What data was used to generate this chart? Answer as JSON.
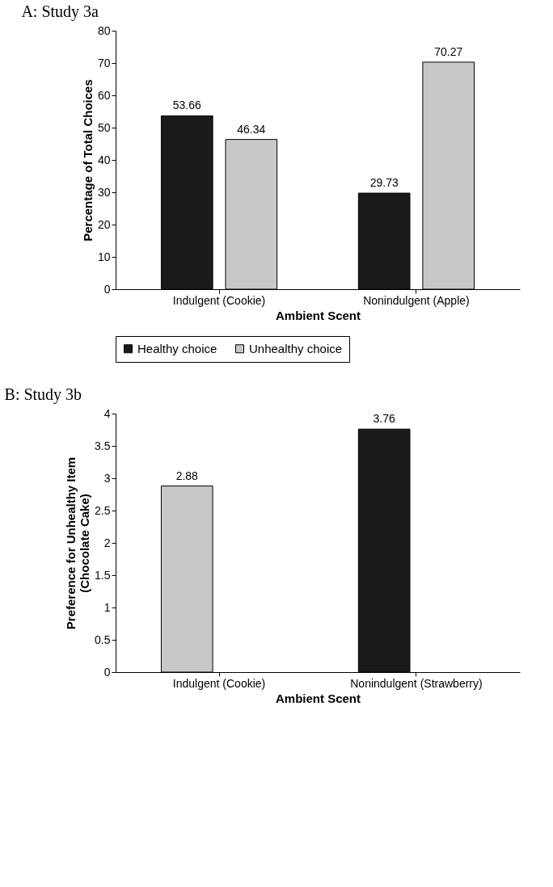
{
  "chart_data": [
    {
      "type": "bar",
      "title": "A: Study 3a",
      "xlabel": "Ambient Scent",
      "ylabel": "Percentage of Total Choices",
      "categories": [
        "Indulgent (Cookie)",
        "Nonindulgent (Apple)"
      ],
      "series": [
        {
          "name": "Healthy choice",
          "color": "#1a1a1a",
          "values": [
            53.66,
            29.73
          ]
        },
        {
          "name": "Unhealthy choice",
          "color": "#c8c8c8",
          "values": [
            46.34,
            70.27
          ]
        }
      ],
      "ylim": [
        0,
        80
      ],
      "yticks": [
        0,
        10,
        20,
        30,
        40,
        50,
        60,
        70,
        80
      ],
      "grid": false,
      "legend": "bottom",
      "data_labels": true
    },
    {
      "type": "bar",
      "title": "B: Study 3b",
      "xlabel": "Ambient Scent",
      "ylabel": "Preference for Unhealthy Item\n(Chocolate Cake)",
      "categories": [
        "Indulgent (Cookie)",
        "Nonindulgent (Strawberry)"
      ],
      "values": [
        2.88,
        3.76
      ],
      "colors": [
        "#c8c8c8",
        "#1a1a1a"
      ],
      "ylim": [
        0,
        4
      ],
      "yticks": [
        0,
        0.5,
        1,
        1.5,
        2,
        2.5,
        3,
        3.5,
        4
      ],
      "grid": false,
      "legend": false,
      "data_labels": true
    }
  ]
}
